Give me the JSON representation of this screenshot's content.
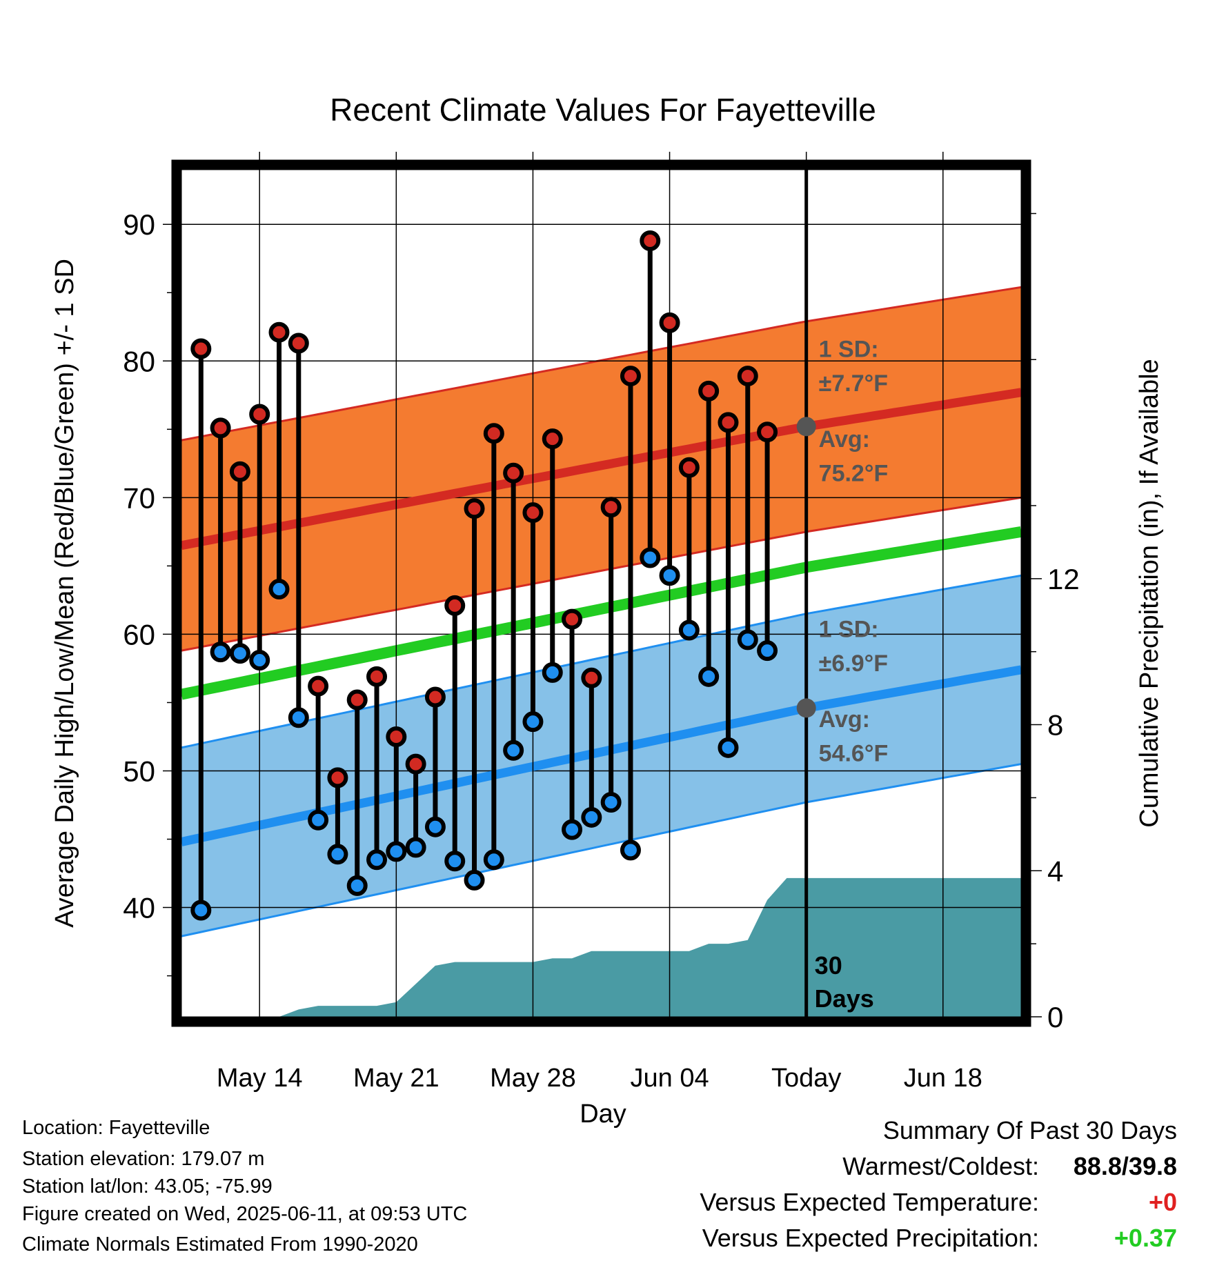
{
  "chart_data": {
    "type": "line",
    "title": "Recent Climate Values For Fayetteville",
    "xlabel": "Day",
    "ylabel": "Average Daily High/Low/Mean (Red/Blue/Green) +/- 1 SD",
    "y2label": "Cumulative Precipitation (in), If Available",
    "ylim": [
      32,
      94
    ],
    "y2lim": [
      0,
      23.2
    ],
    "x_range": [
      "2025-05-10",
      "2025-06-22"
    ],
    "x_ticks": [
      {
        "date": "2025-05-14",
        "label": "May 14"
      },
      {
        "date": "2025-05-21",
        "label": "May 21"
      },
      {
        "date": "2025-05-28",
        "label": "May 28"
      },
      {
        "date": "2025-06-04",
        "label": "Jun 04"
      },
      {
        "date": "2025-06-11",
        "label": "Today"
      },
      {
        "date": "2025-06-18",
        "label": "Jun 18"
      }
    ],
    "y_ticks": [
      40,
      50,
      60,
      70,
      80,
      90
    ],
    "y2_ticks": [
      0,
      4,
      8,
      12
    ],
    "today": "2025-06-11",
    "grid": true,
    "colors": {
      "high_band": "#f47b30",
      "high_line": "#d42a22",
      "low_band": "#86c1e8",
      "low_line": "#1f8ff0",
      "mean_line": "#22cc22",
      "precip": "#4a9ba4",
      "high_dot": "#d22a22",
      "low_dot": "#1f8ff0"
    },
    "normals": {
      "dates": [
        "2025-05-10",
        "2025-06-11",
        "2025-06-22"
      ],
      "high": [
        66.5,
        75.2,
        77.7
      ],
      "low": [
        44.8,
        54.6,
        57.4
      ],
      "mean": [
        55.6,
        64.9,
        67.5
      ],
      "high_sd": 7.7,
      "low_sd": 6.9
    },
    "annotations": {
      "high_sd_label": "1 SD:",
      "high_sd_value": "±7.7°F",
      "high_avg_label": "Avg:",
      "high_avg_value": "75.2°F",
      "low_sd_label": "1 SD:",
      "low_sd_value": "±6.9°F",
      "low_avg_label": "Avg:",
      "low_avg_value": "54.6°F",
      "days_label_1": "30",
      "days_label_2": "Days"
    },
    "series": [
      {
        "name": "High",
        "dates": [
          "2025-05-11",
          "2025-05-12",
          "2025-05-13",
          "2025-05-14",
          "2025-05-15",
          "2025-05-16",
          "2025-05-17",
          "2025-05-18",
          "2025-05-19",
          "2025-05-20",
          "2025-05-21",
          "2025-05-22",
          "2025-05-23",
          "2025-05-24",
          "2025-05-25",
          "2025-05-26",
          "2025-05-27",
          "2025-05-28",
          "2025-05-29",
          "2025-05-30",
          "2025-05-31",
          "2025-06-01",
          "2025-06-02",
          "2025-06-03",
          "2025-06-04",
          "2025-06-05",
          "2025-06-06",
          "2025-06-07",
          "2025-06-08",
          "2025-06-09",
          "2025-06-10"
        ],
        "values": [
          80.9,
          75.1,
          71.9,
          76.1,
          82.1,
          81.3,
          56.2,
          49.5,
          55.2,
          56.9,
          52.5,
          50.5,
          55.4,
          62.1,
          69.2,
          74.7,
          71.8,
          68.9,
          74.3,
          61.1,
          56.8,
          69.3,
          78.9,
          88.8,
          82.8,
          72.2,
          77.8,
          75.5,
          78.9,
          74.8,
          null
        ]
      },
      {
        "name": "Low",
        "dates": [
          "2025-05-11",
          "2025-05-12",
          "2025-05-13",
          "2025-05-14",
          "2025-05-15",
          "2025-05-16",
          "2025-05-17",
          "2025-05-18",
          "2025-05-19",
          "2025-05-20",
          "2025-05-21",
          "2025-05-22",
          "2025-05-23",
          "2025-05-24",
          "2025-05-25",
          "2025-05-26",
          "2025-05-27",
          "2025-05-28",
          "2025-05-29",
          "2025-05-30",
          "2025-05-31",
          "2025-06-01",
          "2025-06-02",
          "2025-06-03",
          "2025-06-04",
          "2025-06-05",
          "2025-06-06",
          "2025-06-07",
          "2025-06-08",
          "2025-06-09",
          "2025-06-10"
        ],
        "values": [
          39.8,
          58.7,
          58.6,
          58.1,
          63.3,
          53.9,
          46.4,
          43.9,
          41.6,
          43.5,
          44.1,
          44.4,
          45.9,
          43.4,
          42.0,
          43.5,
          51.5,
          53.6,
          57.2,
          45.7,
          46.6,
          47.7,
          44.2,
          65.6,
          64.3,
          60.3,
          56.9,
          51.7,
          59.6,
          58.8,
          null
        ]
      },
      {
        "name": "Cumulative Precipitation",
        "dates": [
          "2025-05-10",
          "2025-05-15",
          "2025-05-16",
          "2025-05-17",
          "2025-05-18",
          "2025-05-19",
          "2025-05-20",
          "2025-05-21",
          "2025-05-22",
          "2025-05-23",
          "2025-05-24",
          "2025-05-25",
          "2025-05-26",
          "2025-05-27",
          "2025-05-28",
          "2025-05-29",
          "2025-05-30",
          "2025-05-31",
          "2025-06-01",
          "2025-06-02",
          "2025-06-03",
          "2025-06-04",
          "2025-06-05",
          "2025-06-06",
          "2025-06-07",
          "2025-06-08",
          "2025-06-09",
          "2025-06-10",
          "2025-06-22"
        ],
        "values": [
          0.0,
          0.0,
          0.2,
          0.3,
          0.3,
          0.3,
          0.3,
          0.4,
          0.9,
          1.4,
          1.5,
          1.5,
          1.5,
          1.5,
          1.5,
          1.6,
          1.6,
          1.8,
          1.8,
          1.8,
          1.8,
          1.8,
          1.8,
          2.0,
          2.0,
          2.1,
          3.2,
          3.8,
          3.8
        ]
      }
    ]
  },
  "footer": {
    "location": "Location: Fayetteville",
    "elevation": "Station elevation: 179.07 m",
    "latlon": "Station lat/lon: 43.05; -75.99",
    "created": "Figure created on Wed, 2025-06-11, at 09:53 UTC",
    "normals": "Climate Normals Estimated From 1990-2020"
  },
  "summary": {
    "title": "Summary Of Past 30 Days",
    "warmest_label": "Warmest/Coldest:",
    "warmest_value": "88.8/39.8",
    "temp_label": "Versus Expected Temperature:",
    "temp_value": "+0",
    "temp_color": "#e02020",
    "precip_label": "Versus Expected Precipitation:",
    "precip_value": "+0.37",
    "precip_color": "#22cc22"
  }
}
